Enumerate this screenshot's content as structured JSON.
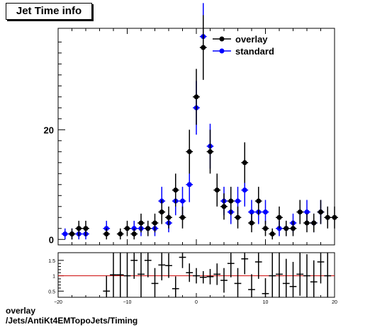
{
  "title": "Jet Time info",
  "footer": {
    "line1": "overlay",
    "line2": "/Jets/AntiKt4EMTopoJets/Timing"
  },
  "colors": {
    "overlay": "#000000",
    "standard": "#0000ff",
    "ratio_line": "#cc0000"
  },
  "chart_data": [
    {
      "type": "scatter",
      "name": "main",
      "xlim": [
        -20,
        20
      ],
      "ylim": [
        -1,
        38.5
      ],
      "y_tick_labels": [
        0,
        20
      ],
      "legend": {
        "placement": "top-right"
      },
      "series": [
        {
          "name": "overlay",
          "x": [
            -18,
            -17,
            -16,
            -13,
            -11,
            -10,
            -9,
            -8,
            -7,
            -6,
            -5,
            -4,
            -3,
            -2,
            -1,
            0,
            1,
            2,
            3,
            4,
            5,
            6,
            7,
            8,
            9,
            10,
            11,
            12,
            13,
            14,
            15,
            16,
            17,
            18,
            19,
            20
          ],
          "y": [
            1,
            2,
            2,
            1,
            1,
            2,
            1,
            3,
            2,
            3,
            5,
            4,
            9,
            4,
            16,
            26,
            35,
            16,
            9,
            6,
            7,
            4,
            14,
            3,
            7,
            2,
            1,
            4,
            2,
            2,
            5,
            3,
            3,
            5,
            4,
            4
          ],
          "err": [
            1,
            1.4,
            1.4,
            1,
            1,
            1.4,
            1,
            1.7,
            1.4,
            1.7,
            2.2,
            2,
            3,
            2,
            4,
            5.1,
            5.9,
            4,
            3,
            2.4,
            2.6,
            2,
            3.7,
            1.7,
            2.6,
            1.4,
            1,
            2,
            1.4,
            1.4,
            2.2,
            1.7,
            1.7,
            2.2,
            2,
            2
          ]
        },
        {
          "name": "standard",
          "x": [
            -19,
            -18,
            -17,
            -16,
            -13,
            -9,
            -8,
            -7,
            -6,
            -5,
            -4,
            -3,
            -2,
            -1,
            0,
            1,
            2,
            4,
            5,
            6,
            7,
            8,
            9,
            10,
            12,
            13,
            14,
            16,
            17,
            18
          ],
          "y": [
            1,
            1,
            1,
            1,
            2,
            2,
            2,
            2,
            2,
            7,
            3,
            7,
            7,
            10,
            24,
            37,
            17,
            7,
            5,
            7,
            9,
            5,
            5,
            5,
            2,
            2,
            3,
            5,
            3,
            5
          ],
          "err": [
            1,
            1,
            1,
            1,
            1.4,
            1.4,
            1.4,
            1.4,
            1.4,
            2.6,
            1.7,
            2.6,
            2.6,
            3.2,
            4.9,
            6.1,
            4.1,
            2.6,
            2.2,
            2.6,
            3,
            2.2,
            2.2,
            2.2,
            1.4,
            1.4,
            1.7,
            2.2,
            1.7,
            2.2
          ]
        }
      ]
    },
    {
      "type": "scatter",
      "name": "ratio",
      "xlim": [
        -20,
        20
      ],
      "ylim": [
        0.3,
        1.75
      ],
      "x_tick_labels": [
        -20,
        -10,
        0,
        10,
        20
      ],
      "y_tick_labels": [
        0.5,
        1,
        1.5
      ],
      "reference_line": 1,
      "x": [
        -13,
        -12,
        -11,
        -10,
        -9,
        -8,
        -7,
        -6,
        -5,
        -4,
        -3,
        -2,
        -1,
        0,
        1,
        2,
        3,
        4,
        5,
        6,
        7,
        8,
        9,
        10,
        11,
        12,
        13,
        14,
        15,
        16,
        17,
        18,
        19
      ],
      "y": [
        0.5,
        1.03,
        1.03,
        1.0,
        1.5,
        1.05,
        1.5,
        0.75,
        1.35,
        1.33,
        0.58,
        1.6,
        1.1,
        1.0,
        0.95,
        0.97,
        1.05,
        0.85,
        1.4,
        0.75,
        1.55,
        0.55,
        1.45,
        0.42,
        1.0,
        1.05,
        0.75,
        0.65,
        1.05,
        1.0,
        0.8,
        1.45,
        1.0
      ],
      "err": [
        0.5,
        0.8,
        0.8,
        0.8,
        0.6,
        0.8,
        0.55,
        0.5,
        0.5,
        0.4,
        0.4,
        0.35,
        0.3,
        0.25,
        0.2,
        0.25,
        0.35,
        0.4,
        0.45,
        0.5,
        0.5,
        0.5,
        0.55,
        0.5,
        0.8,
        0.8,
        0.8,
        0.8,
        0.7,
        0.7,
        0.7,
        0.7,
        0.8
      ]
    }
  ]
}
